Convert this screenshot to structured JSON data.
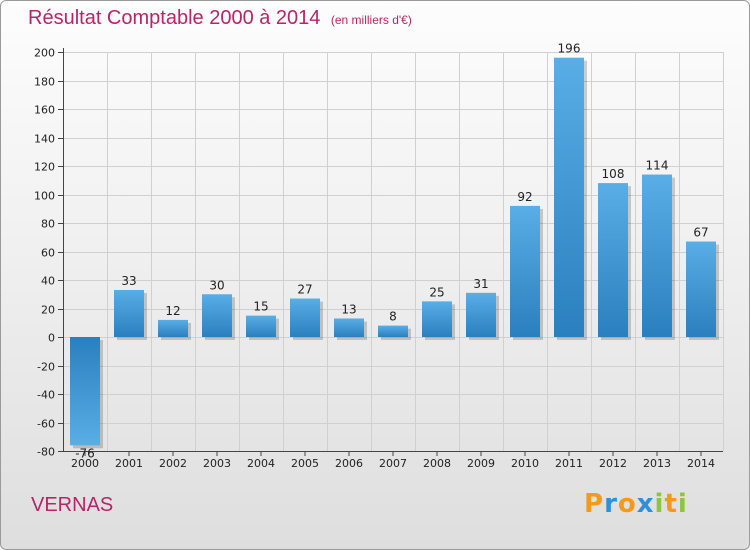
{
  "title": "Résultat Comptable 2000 à 2014",
  "subtitle": "(en milliers d'€)",
  "city": "VERNAS",
  "logo": "Proxiti",
  "colors": {
    "title": "#b5256b",
    "bar_light": "#5aaee6",
    "bar_dark": "#2a7fbe"
  },
  "chart_data": {
    "type": "bar",
    "title": "Résultat Comptable 2000 à 2014",
    "subtitle": "(en milliers d'€)",
    "xlabel": "",
    "ylabel": "",
    "categories": [
      "2000",
      "2001",
      "2002",
      "2003",
      "2004",
      "2005",
      "2006",
      "2007",
      "2008",
      "2009",
      "2010",
      "2011",
      "2012",
      "2013",
      "2014"
    ],
    "values": [
      -76,
      33,
      12,
      30,
      15,
      27,
      13,
      8,
      25,
      31,
      92,
      196,
      108,
      114,
      67
    ],
    "data_labels": [
      "-76",
      "33",
      "12",
      "30",
      "15",
      "27",
      "13",
      "8",
      "25",
      "31",
      "92",
      "196",
      "108",
      "114",
      "67"
    ],
    "ylim": [
      -80,
      200
    ],
    "yticks": [
      -80,
      -60,
      -40,
      -20,
      0,
      20,
      40,
      60,
      80,
      100,
      120,
      140,
      160,
      180,
      200
    ],
    "grid": true
  }
}
